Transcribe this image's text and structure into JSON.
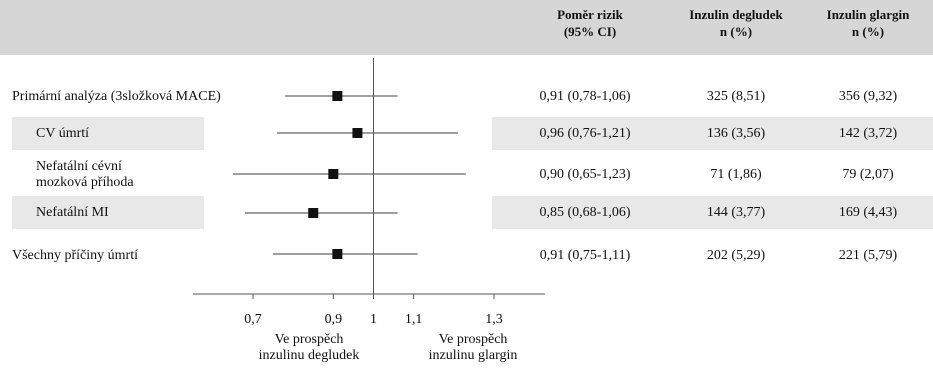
{
  "header": {
    "col_hr": "Poměr rizik\n(95% CI)",
    "col_degludec": "Inzulin degludek\nn (%)",
    "col_glargin": "Inzulin glargin\nn (%)"
  },
  "rows": [
    {
      "label": "Primární analýza (3složková MACE)",
      "hr_text": "0,91 (0,78-1,06)",
      "degludec": "325 (8,51)",
      "glargin": "356 (9,32)"
    },
    {
      "label": "CV úmrtí",
      "hr_text": "0,96 (0,76-1,21)",
      "degludec": "136 (3,56)",
      "glargin": "142 (3,72)"
    },
    {
      "label": "Nefatální cévní\nmozková příhoda",
      "hr_text": "0,90 (0,65-1,23)",
      "degludec": "71 (1,86)",
      "glargin": "79 (2,07)"
    },
    {
      "label": "Nefatální MI",
      "hr_text": "0,85 (0,68-1,06)",
      "degludec": "144 (3,77)",
      "glargin": "169 (4,43)"
    },
    {
      "label": "Všechny příčiny úmrtí",
      "hr_text": "0,91 (0,75-1,11)",
      "degludec": "202 (5,29)",
      "glargin": "221 (5,79)"
    }
  ],
  "favours": {
    "left": "Ve prospěch\ninzulinu degludek",
    "right": "Ve prospěch\ninzulinu glargin"
  },
  "chart_data": {
    "type": "forest",
    "x_scale": "linear",
    "reference_line": 1,
    "xlim": [
      0.6,
      1.4
    ],
    "ticks": [
      {
        "value": 0.7,
        "label": "0,7"
      },
      {
        "value": 0.9,
        "label": "0,9"
      },
      {
        "value": 1.0,
        "label": "1"
      },
      {
        "value": 1.1,
        "label": "1,1"
      },
      {
        "value": 1.3,
        "label": "1,3"
      }
    ],
    "points": [
      {
        "hr": 0.91,
        "lo": 0.78,
        "hi": 1.06
      },
      {
        "hr": 0.96,
        "lo": 0.76,
        "hi": 1.21
      },
      {
        "hr": 0.9,
        "lo": 0.65,
        "hi": 1.23
      },
      {
        "hr": 0.85,
        "lo": 0.68,
        "hi": 1.06
      },
      {
        "hr": 0.91,
        "lo": 0.75,
        "hi": 1.11
      }
    ]
  }
}
